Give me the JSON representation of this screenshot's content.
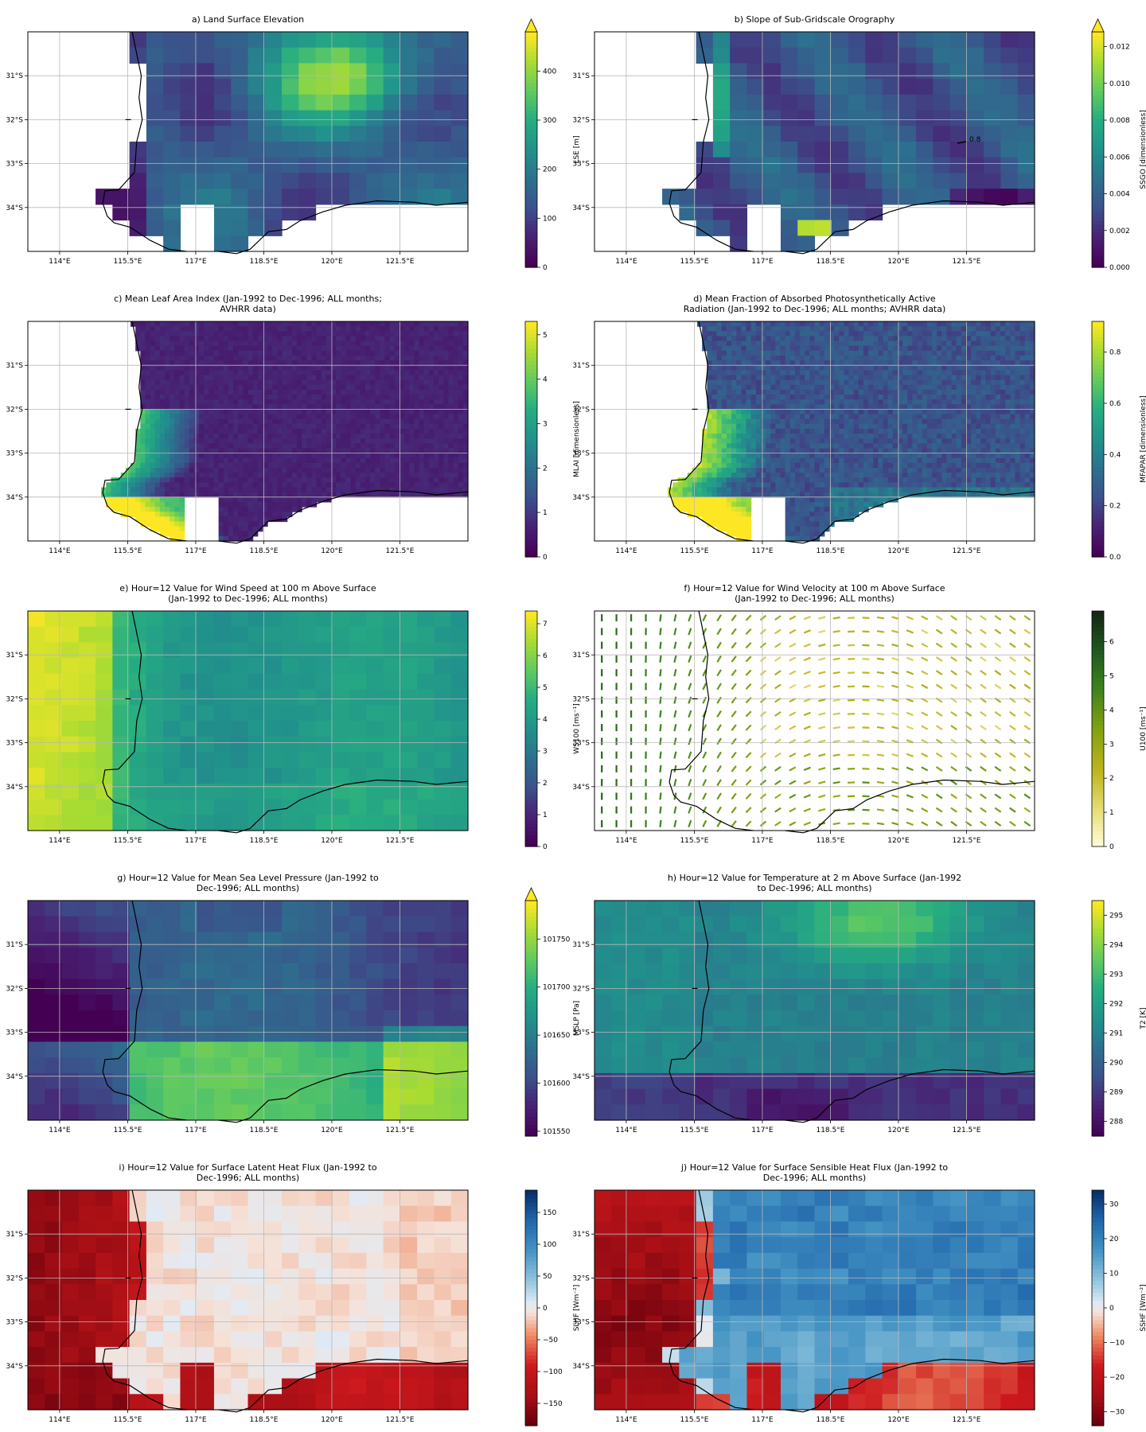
{
  "figure": {
    "x_ticks": [
      "114°E",
      "115.5°E",
      "117°E",
      "118.5°E",
      "120°E",
      "121.5°E"
    ],
    "y_ticks": [
      "31°S",
      "32°S",
      "33°S",
      "34°S"
    ]
  },
  "chart_data": [
    {
      "id": "a",
      "type": "heatmap",
      "title": [
        "a) Land Surface Elevation"
      ],
      "colorbar": {
        "label": "LSE [m]",
        "cmap": "viridis",
        "min": 0,
        "max": 480,
        "ticks": [
          {
            "v": 0,
            "t": "0"
          },
          {
            "v": 100,
            "t": "100"
          },
          {
            "v": 200,
            "t": "200"
          },
          {
            "v": 300,
            "t": "300"
          },
          {
            "v": 400,
            "t": "400"
          }
        ],
        "extend_max": true
      },
      "grid_values": {
        "resolution": "coarse",
        "nx": 26,
        "ny": 18,
        "land_only": true,
        "peak_region": "north-east interior",
        "range": [
          0,
          470
        ]
      }
    },
    {
      "id": "b",
      "type": "heatmap",
      "title": [
        "b) Slope of Sub-Gridscale Orography"
      ],
      "colorbar": {
        "label": "SSGO [dimensionless]",
        "cmap": "viridis",
        "min": 0,
        "max": 0.0128,
        "ticks": [
          {
            "v": 0,
            "t": "0.000"
          },
          {
            "v": 0.002,
            "t": "0.002"
          },
          {
            "v": 0.004,
            "t": "0.004"
          },
          {
            "v": 0.006,
            "t": "0.006"
          },
          {
            "v": 0.008,
            "t": "0.008"
          },
          {
            "v": 0.01,
            "t": "0.010"
          },
          {
            "v": 0.012,
            "t": "0.012"
          }
        ],
        "extend_max": true
      },
      "annotation": "0.8",
      "grid_values": {
        "resolution": "coarse",
        "land_only": true,
        "peak_region": "Stirling Range ~118.2°E 34.4°S",
        "range": [
          0,
          0.0125
        ]
      }
    },
    {
      "id": "c",
      "type": "heatmap",
      "title": [
        "c) Mean Leaf Area Index (Jan-1992 to Dec-1996; ALL months;",
        "AVHRR data)"
      ],
      "colorbar": {
        "label": "MLAI [dimensionless]",
        "cmap": "viridis",
        "min": 0,
        "max": 5.3,
        "ticks": [
          {
            "v": 0,
            "t": "0"
          },
          {
            "v": 1,
            "t": "1"
          },
          {
            "v": 2,
            "t": "2"
          },
          {
            "v": 3,
            "t": "3"
          },
          {
            "v": 4,
            "t": "4"
          },
          {
            "v": 5,
            "t": "5"
          }
        ]
      },
      "grid_values": {
        "resolution": "fine",
        "land_only": true,
        "peak_region": "south-west forest belt",
        "range": [
          0,
          5.2
        ]
      }
    },
    {
      "id": "d",
      "type": "heatmap",
      "title": [
        "d) Mean Fraction of Absorbed Photosynthetically Active",
        "Radiation (Jan-1992 to Dec-1996; ALL months; AVHRR data)"
      ],
      "colorbar": {
        "label": "MFAPAR [dimensionless]",
        "cmap": "viridis",
        "min": 0,
        "max": 0.92,
        "ticks": [
          {
            "v": 0,
            "t": "0.0"
          },
          {
            "v": 0.2,
            "t": "0.2"
          },
          {
            "v": 0.4,
            "t": "0.4"
          },
          {
            "v": 0.6,
            "t": "0.6"
          },
          {
            "v": 0.8,
            "t": "0.8"
          }
        ]
      },
      "grid_values": {
        "resolution": "fine",
        "land_only": true,
        "peak_region": "south-west forest belt",
        "range": [
          0,
          0.9
        ]
      }
    },
    {
      "id": "e",
      "type": "heatmap",
      "title": [
        "e) Hour=12 Value for Wind Speed at 100 m Above Surface",
        "(Jan-1992 to Dec-1996; ALL months)"
      ],
      "colorbar": {
        "label": "WS100 [ms⁻¹]",
        "cmap": "viridis",
        "min": 0,
        "max": 7.4,
        "ticks": [
          {
            "v": 0,
            "t": "0"
          },
          {
            "v": 1,
            "t": "1"
          },
          {
            "v": 2,
            "t": "2"
          },
          {
            "v": 3,
            "t": "3"
          },
          {
            "v": 4,
            "t": "4"
          },
          {
            "v": 5,
            "t": "5"
          },
          {
            "v": 6,
            "t": "6"
          },
          {
            "v": 7,
            "t": "7"
          }
        ]
      },
      "grid_values": {
        "resolution": "coarse",
        "land_only": false,
        "peak_region": "offshore north-west",
        "range": [
          3.5,
          7.3
        ]
      }
    },
    {
      "id": "f",
      "type": "quiver",
      "title": [
        "f) Hour=12 Value for Wind Velocity at 100 m Above Surface",
        "(Jan-1992 to Dec-1996; ALL months)"
      ],
      "colorbar": {
        "label": "U100 [ms⁻¹]",
        "cmap": "olive",
        "min": 0,
        "max": 6.9,
        "ticks": [
          {
            "v": 0,
            "t": "0"
          },
          {
            "v": 1,
            "t": "1"
          },
          {
            "v": 2,
            "t": "2"
          },
          {
            "v": 3,
            "t": "3"
          },
          {
            "v": 4,
            "t": "4"
          },
          {
            "v": 5,
            "t": "5"
          },
          {
            "v": 6,
            "t": "6"
          }
        ]
      },
      "grid_values": {
        "nx": 30,
        "ny": 16,
        "direction_west": "northward",
        "direction_east": "south-eastward"
      }
    },
    {
      "id": "g",
      "type": "heatmap",
      "title": [
        "g) Hour=12 Value for Mean Sea Level Pressure (Jan-1992 to",
        "Dec-1996; ALL months)"
      ],
      "colorbar": {
        "label": "MSLP [Pa]",
        "cmap": "viridis",
        "min": 101545,
        "max": 101790,
        "ticks": [
          {
            "v": 101550,
            "t": "101550"
          },
          {
            "v": 101600,
            "t": "101600"
          },
          {
            "v": 101650,
            "t": "101650"
          },
          {
            "v": 101700,
            "t": "101700"
          },
          {
            "v": 101750,
            "t": "101750"
          }
        ],
        "extend_max": true
      },
      "grid_values": {
        "resolution": "coarse",
        "land_only": false,
        "peak_region": "south-west and south-east ocean",
        "range": [
          101550,
          101780
        ]
      }
    },
    {
      "id": "h",
      "type": "heatmap",
      "title": [
        "h) Hour=12 Value for Temperature at 2 m Above Surface (Jan-1992",
        "to Dec-1996; ALL months)"
      ],
      "colorbar": {
        "label": "T2 [K]",
        "cmap": "viridis",
        "min": 287.5,
        "max": 295.5,
        "ticks": [
          {
            "v": 288,
            "t": "288"
          },
          {
            "v": 289,
            "t": "289"
          },
          {
            "v": 290,
            "t": "290"
          },
          {
            "v": 291,
            "t": "291"
          },
          {
            "v": 292,
            "t": "292"
          },
          {
            "v": 293,
            "t": "293"
          },
          {
            "v": 294,
            "t": "294"
          },
          {
            "v": 295,
            "t": "295"
          }
        ]
      },
      "grid_values": {
        "resolution": "coarse",
        "land_only": false,
        "peak_region": "north-east interior",
        "range": [
          287.8,
          295.3
        ]
      }
    },
    {
      "id": "i",
      "type": "heatmap",
      "title": [
        "i) Hour=12 Value for Surface Latent Heat Flux (Jan-1992 to",
        "Dec-1996; ALL months)"
      ],
      "colorbar": {
        "label": "SLHF [Wm⁻²]",
        "cmap": "RdBu",
        "min": -185,
        "max": 185,
        "ticks": [
          {
            "v": -150,
            "t": "−150"
          },
          {
            "v": -100,
            "t": "−100"
          },
          {
            "v": -50,
            "t": "−50"
          },
          {
            "v": 0,
            "t": "0"
          },
          {
            "v": 50,
            "t": "50"
          },
          {
            "v": 100,
            "t": "100"
          },
          {
            "v": 150,
            "t": "150"
          }
        ]
      },
      "grid_values": {
        "resolution": "coarse",
        "land_only": false,
        "ocean_range": [
          -180,
          -90
        ],
        "land_range": [
          -25,
          0
        ]
      }
    },
    {
      "id": "j",
      "type": "heatmap",
      "title": [
        "j) Hour=12 Value for Surface Sensible Heat Flux (Jan-1992 to",
        "Dec-1996; ALL months)"
      ],
      "colorbar": {
        "label": "SSHF [Wm⁻²]",
        "cmap": "RdBu",
        "min": -34,
        "max": 34,
        "ticks": [
          {
            "v": -30,
            "t": "−30"
          },
          {
            "v": -20,
            "t": "−20"
          },
          {
            "v": -10,
            "t": "−10"
          },
          {
            "v": 0,
            "t": "0"
          },
          {
            "v": 10,
            "t": "10"
          },
          {
            "v": 20,
            "t": "20"
          },
          {
            "v": 30,
            "t": "30"
          }
        ]
      },
      "grid_values": {
        "resolution": "coarse",
        "land_only": false,
        "ocean_range": [
          -32,
          -12
        ],
        "land_range": [
          5,
          26
        ]
      }
    }
  ]
}
